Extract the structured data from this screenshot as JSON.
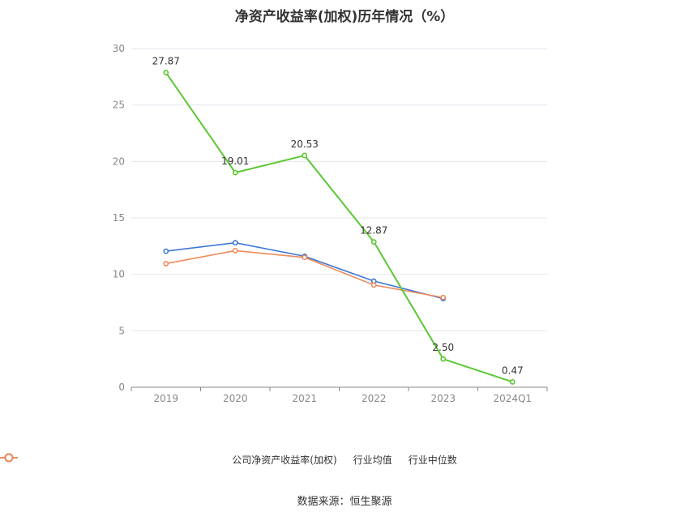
{
  "chart_data": {
    "type": "line",
    "title": "净资产收益率(加权)历年情况（%）",
    "categories": [
      "2019",
      "2020",
      "2021",
      "2022",
      "2023",
      "2024Q1"
    ],
    "ylim": [
      0,
      30
    ],
    "yticks": [
      0,
      5,
      10,
      15,
      20,
      25,
      30
    ],
    "grid": true,
    "legend_position": "bottom",
    "series": [
      {
        "name": "公司净资产收益率(加权)",
        "color": "#5ac832",
        "values": [
          27.87,
          19.01,
          20.53,
          12.87,
          2.5,
          0.47
        ],
        "labels": [
          "27.87",
          "19.01",
          "20.53",
          "12.87",
          "2.50",
          "0.47"
        ]
      },
      {
        "name": "行业均值",
        "color": "#3f76d4",
        "values": [
          12.05,
          12.8,
          11.6,
          9.4,
          7.85,
          null
        ]
      },
      {
        "name": "行业中位数",
        "color": "#f08a5a",
        "values": [
          10.95,
          12.1,
          11.5,
          9.05,
          7.95,
          null
        ]
      }
    ]
  },
  "source": "数据来源：恒生聚源"
}
